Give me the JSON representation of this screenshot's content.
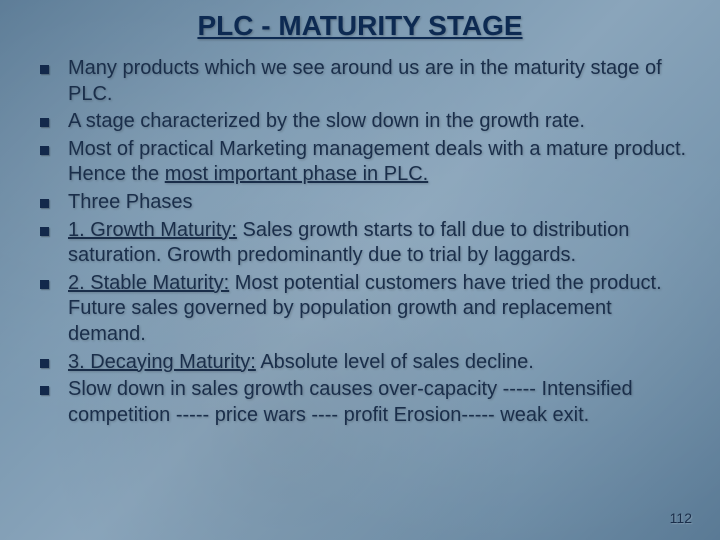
{
  "title": {
    "text": "PLC - MATURITY STAGE",
    "color": "#0d2a52",
    "fontsize": 28
  },
  "body": {
    "color": "#1a2e4a",
    "fontsize": 20,
    "lineheight": 1.28
  },
  "bullets": [
    {
      "segments": [
        {
          "text": "Many products which we see around us are in the maturity stage of PLC."
        }
      ]
    },
    {
      "segments": [
        {
          "text": " A stage characterized by the slow down in the growth rate."
        }
      ]
    },
    {
      "segments": [
        {
          "text": "Most of practical Marketing management deals with a mature product. Hence the "
        },
        {
          "text": "most important phase in PLC.",
          "underline": true
        }
      ]
    },
    {
      "segments": [
        {
          "text": "Three Phases"
        }
      ]
    },
    {
      "segments": [
        {
          "text": "1. Growth Maturity:",
          "underline": true
        },
        {
          "text": " Sales growth starts to fall due to distribution saturation. Growth predominantly due to trial by laggards."
        }
      ]
    },
    {
      "segments": [
        {
          "text": "2. Stable Maturity:",
          "underline": true
        },
        {
          "text": " Most potential customers have tried the product. Future sales governed by population growth and replacement demand."
        }
      ]
    },
    {
      "segments": [
        {
          "text": "3. Decaying Maturity:",
          "underline": true
        },
        {
          "text": " Absolute level of sales decline."
        }
      ]
    },
    {
      "segments": [
        {
          "text": "Slow down in sales growth causes over-capacity ----- Intensified competition ----- price wars ---- profit Erosion----- weak exit."
        }
      ]
    }
  ],
  "page_number": "112",
  "bullet_marker_color": "#13294b"
}
